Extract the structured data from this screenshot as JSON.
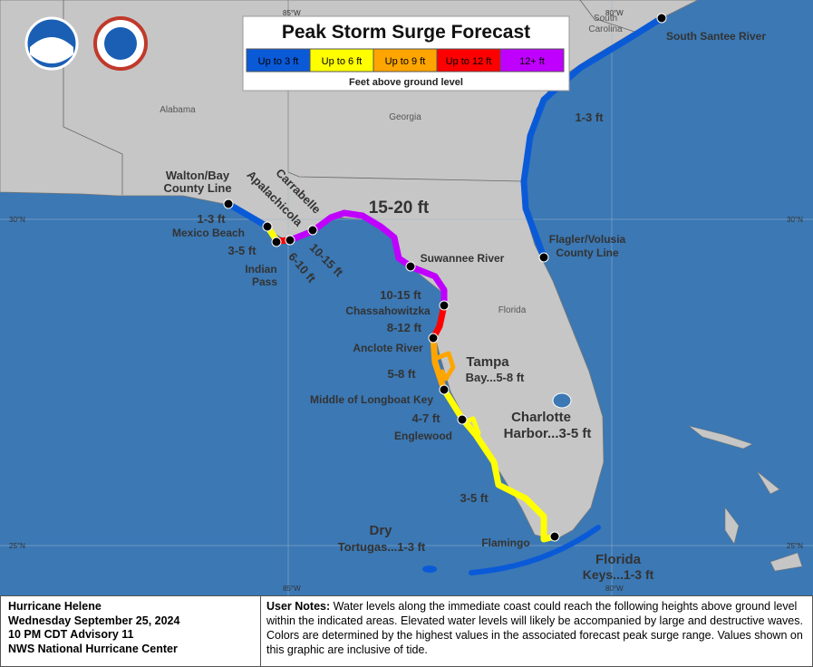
{
  "header": {
    "title": "Peak Storm Surge Forecast",
    "legend": [
      {
        "label": "Up to 3 ft",
        "color": "#0a5ad8"
      },
      {
        "label": "Up to 6 ft",
        "color": "#ffff00"
      },
      {
        "label": "Up to 9 ft",
        "color": "#ffa500"
      },
      {
        "label": "Up to 12 ft",
        "color": "#ff0000"
      },
      {
        "label": "12+ ft",
        "color": "#c000ff"
      }
    ],
    "legend_caption": "Feet above ground level"
  },
  "grid_labels": [
    "85°W",
    "80°W",
    "30°N",
    "30°N",
    "25°N",
    "25°N",
    "85°W",
    "80°W"
  ],
  "states": [
    "Alabama",
    "Georgia",
    "Florida",
    "South",
    "Carolina"
  ],
  "map_labels": [
    "Walton/Bay",
    "County Line",
    "Apalachicola",
    "Carrabelle",
    "15-20 ft",
    "1-3 ft",
    "Mexico Beach",
    "3-5 ft",
    "Indian",
    "Pass",
    "6-10 ft",
    "10-15 ft",
    "Suwannee River",
    "10-15 ft",
    "Chassahowitzka",
    "8-12 ft",
    "Anclote River",
    "Tampa",
    "Bay...5-8 ft",
    "5-8 ft",
    "Middle of Longboat Key",
    "4-7 ft",
    "Englewood",
    "Charlotte",
    "Harbor...3-5 ft",
    "3-5 ft",
    "Dry",
    "Tortugas...1-3 ft",
    "Flamingo",
    "Florida",
    "Keys...1-3 ft",
    "1-3 ft",
    "South Santee River",
    "Flagler/Volusia",
    "County Line"
  ],
  "footer": {
    "info": [
      "Hurricane Helene",
      "Wednesday September 25, 2024",
      "10 PM CDT Advisory 11",
      "NWS National Hurricane Center"
    ],
    "notes_label": "User Notes:",
    "notes": "Water levels along the immediate coast could reach the following heights above ground level within the indicated areas. Elevated water levels will likely be accompanied by large and destructive waves. Colors are determined by the highest values in the associated forecast peak surge range. Values shown on this graphic are inclusive of tide."
  }
}
